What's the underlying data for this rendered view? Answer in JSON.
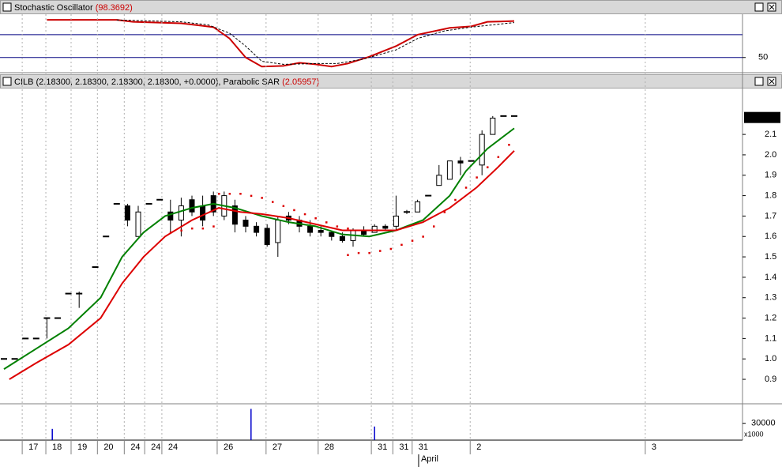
{
  "chart_data": [
    {
      "type": "line",
      "title": "Stochastic Oscillator",
      "title_value": "(98.3692)",
      "ylim": [
        31,
        107
      ],
      "yticks": [
        50
      ],
      "levels": [
        80,
        50
      ],
      "level_color": "#000080",
      "xlim": [
        -0.735,
        137.5
      ],
      "series": [
        {
          "name": "%K",
          "color": "#cc0000",
          "x": [
            8,
            21,
            24,
            33,
            39,
            42,
            45,
            48,
            52,
            55,
            58,
            61,
            64,
            68,
            73,
            77,
            83,
            87,
            90,
            95
          ],
          "values": [
            99.6,
            99.6,
            97,
            95,
            90,
            75,
            50,
            38,
            39,
            43,
            41,
            38,
            42,
            51,
            65,
            80,
            89,
            91,
            97,
            98
          ]
        },
        {
          "name": "%D",
          "color": "#000000",
          "dashed": true,
          "x": [
            21,
            33,
            38,
            42,
            45,
            48,
            52,
            58,
            62,
            67,
            73,
            77,
            82,
            87,
            95
          ],
          "values": [
            99.5,
            97,
            93,
            82,
            65,
            45,
            41,
            42,
            42,
            48,
            60,
            75,
            85,
            90,
            96
          ]
        }
      ]
    },
    {
      "type": "candlestick",
      "title": "CILB (2.18300, 2.18300, 2.18300, 2.18300, +0.0000), Parabolic SAR",
      "title_value": "(2.05957)",
      "last_price": {
        "value": 2.183,
        "label": "2.18300"
      },
      "xlim": [
        -0.735,
        137.5
      ],
      "ylim": [
        0.784,
        2.325
      ],
      "yticks": [
        0.9,
        {
          "value": 1,
          "label": "1.0"
        },
        1.1,
        1.2,
        1.3,
        1.4,
        1.5,
        1.6,
        1.7,
        1.8,
        1.9,
        {
          "value": 2,
          "label": "2.0"
        },
        2.1
      ],
      "xticks": [
        {
          "value": 3.4,
          "label": "17"
        },
        {
          "value": 7.8,
          "label": "18"
        },
        {
          "value": 12.5,
          "label": "19"
        },
        {
          "value": 17.4,
          "label": "20"
        },
        {
          "value": 22.4,
          "label": "24"
        },
        {
          "value": 26.2,
          "label": "24"
        },
        {
          "value": 29.4,
          "label": "24"
        },
        {
          "value": 39.7,
          "label": "26"
        },
        {
          "value": 48.8,
          "label": "27"
        },
        {
          "value": 58.5,
          "label": "28"
        },
        {
          "value": 68.4,
          "label": "31"
        },
        {
          "value": 72.4,
          "label": "31"
        },
        {
          "value": 76,
          "label": "31"
        },
        {
          "value": 86.8,
          "label": "2"
        },
        {
          "value": 119.4,
          "label": "3"
        }
      ],
      "month_label": {
        "value": 77.2,
        "label": "April"
      },
      "candles": {
        "x": [
          0,
          2,
          4,
          6,
          8,
          10,
          12,
          14,
          17,
          19,
          21,
          23,
          25,
          27,
          29,
          31,
          33,
          35,
          37,
          39,
          41,
          43,
          45,
          47,
          49,
          51,
          53,
          55,
          57,
          59,
          61,
          63,
          65,
          67,
          69,
          71,
          73,
          75,
          77,
          79,
          81,
          83,
          85,
          87,
          89,
          91,
          93,
          95
        ],
        "open": [
          1.0,
          1.0,
          1.1,
          1.1,
          1.2,
          1.2,
          1.32,
          1.32,
          1.45,
          1.6,
          1.76,
          1.75,
          1.6,
          1.76,
          1.78,
          1.72,
          1.68,
          1.78,
          1.75,
          1.8,
          1.7,
          1.75,
          1.68,
          1.65,
          1.64,
          1.57,
          1.7,
          1.68,
          1.65,
          1.63,
          1.62,
          1.6,
          1.58,
          1.63,
          1.62,
          1.65,
          1.65,
          1.72,
          1.72,
          1.8,
          1.85,
          1.88,
          1.97,
          1.97,
          1.95,
          2.1,
          2.19,
          2.19
        ],
        "high": [
          1.0,
          1.0,
          1.1,
          1.1,
          1.2,
          1.2,
          1.32,
          1.33,
          1.45,
          1.6,
          1.76,
          1.76,
          1.75,
          1.76,
          1.78,
          1.78,
          1.79,
          1.8,
          1.8,
          1.82,
          1.82,
          1.78,
          1.7,
          1.67,
          1.66,
          1.7,
          1.72,
          1.7,
          1.68,
          1.65,
          1.63,
          1.62,
          1.64,
          1.65,
          1.66,
          1.66,
          1.8,
          1.73,
          1.78,
          1.8,
          1.95,
          1.97,
          1.99,
          1.97,
          2.12,
          2.19,
          2.19,
          2.19
        ],
        "low": [
          1.0,
          1.0,
          1.1,
          1.1,
          1.1,
          1.2,
          1.32,
          1.25,
          1.45,
          1.6,
          1.76,
          1.65,
          1.6,
          1.76,
          1.78,
          1.62,
          1.6,
          1.7,
          1.65,
          1.7,
          1.68,
          1.62,
          1.62,
          1.6,
          1.55,
          1.5,
          1.66,
          1.62,
          1.6,
          1.6,
          1.58,
          1.57,
          1.55,
          1.6,
          1.62,
          1.63,
          1.63,
          1.71,
          1.72,
          1.8,
          1.85,
          1.88,
          1.9,
          1.97,
          1.9,
          2.1,
          2.19,
          2.19
        ],
        "close": [
          1.0,
          1.0,
          1.1,
          1.1,
          1.2,
          1.2,
          1.32,
          1.32,
          1.45,
          1.6,
          1.76,
          1.68,
          1.72,
          1.76,
          1.78,
          1.68,
          1.75,
          1.72,
          1.68,
          1.72,
          1.8,
          1.66,
          1.65,
          1.62,
          1.56,
          1.68,
          1.68,
          1.65,
          1.62,
          1.62,
          1.6,
          1.58,
          1.63,
          1.61,
          1.65,
          1.64,
          1.7,
          1.72,
          1.77,
          1.8,
          1.9,
          1.97,
          1.96,
          1.97,
          2.1,
          2.18,
          2.19,
          2.19
        ]
      },
      "series": [
        {
          "name": "MA fast",
          "color": "#008000",
          "x": [
            0,
            6,
            12,
            18,
            22,
            26,
            30,
            35,
            39,
            43,
            48,
            53,
            58,
            63,
            68,
            73,
            78,
            83,
            86,
            90,
            95
          ],
          "values": [
            0.95,
            1.05,
            1.15,
            1.3,
            1.5,
            1.62,
            1.7,
            1.74,
            1.76,
            1.74,
            1.7,
            1.67,
            1.65,
            1.61,
            1.6,
            1.63,
            1.68,
            1.8,
            1.92,
            2.03,
            2.13
          ]
        },
        {
          "name": "MA slow",
          "color": "#dd0000",
          "x": [
            1,
            6,
            12,
            18,
            22,
            26,
            30,
            35,
            40,
            44,
            48,
            53,
            58,
            63,
            68,
            73,
            78,
            83,
            88,
            92,
            95
          ],
          "values": [
            0.9,
            0.98,
            1.07,
            1.2,
            1.37,
            1.5,
            1.6,
            1.68,
            1.74,
            1.72,
            1.71,
            1.69,
            1.66,
            1.63,
            1.63,
            1.63,
            1.67,
            1.74,
            1.84,
            1.94,
            2.02
          ]
        }
      ],
      "sar": {
        "color": "#dd0000",
        "x": [
          31,
          33,
          35,
          37,
          39,
          40,
          42,
          44,
          46,
          48,
          50,
          52,
          54,
          56,
          58,
          60,
          62,
          64,
          64,
          66,
          68,
          70,
          72,
          74,
          76,
          78,
          80,
          82,
          84,
          86,
          88,
          90,
          92,
          94
        ],
        "values": [
          1.62,
          1.63,
          1.64,
          1.64,
          1.65,
          1.81,
          1.81,
          1.81,
          1.8,
          1.79,
          1.77,
          1.75,
          1.73,
          1.71,
          1.69,
          1.67,
          1.65,
          1.64,
          1.51,
          1.52,
          1.52,
          1.53,
          1.54,
          1.56,
          1.58,
          1.6,
          1.65,
          1.72,
          1.78,
          1.84,
          1.89,
          1.94,
          1.99,
          2.05
        ]
      }
    },
    {
      "type": "bar",
      "xlim": [
        -0.735,
        137.5
      ],
      "ylim": [
        0,
        62000
      ],
      "yticks": [
        30000
      ],
      "unit_label": "x1000",
      "color": "#0000cc",
      "x": [
        9,
        46,
        69
      ],
      "values": [
        20000,
        55700,
        24300
      ]
    }
  ]
}
